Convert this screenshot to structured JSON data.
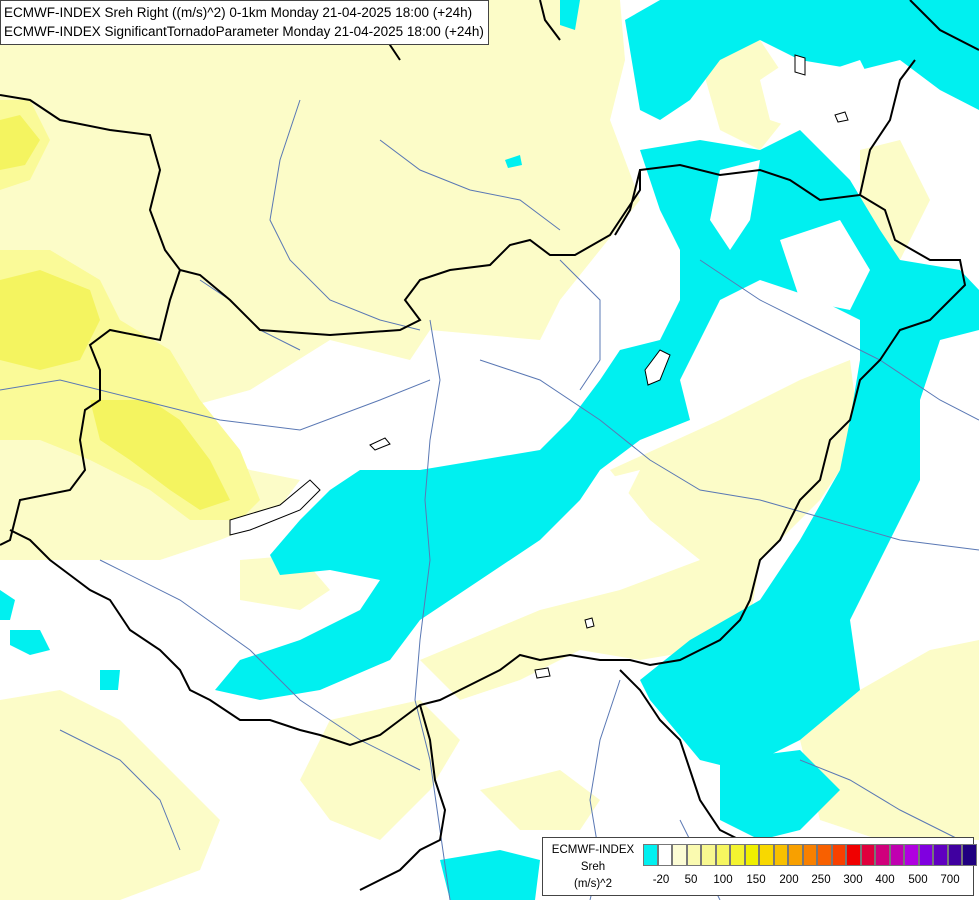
{
  "map": {
    "title_line_1": "ECMWF-INDEX Sreh Right ((m/s)^2) 0-1km Monday 21-04-2025 18:00 (+24h)",
    "title_line_2": "ECMWF-INDEX SignificantTornadoParameter Monday 21-04-2025 18:00 (+24h)",
    "colors": {
      "cyan": "#00f0f0",
      "pale_yellow": "#fcfcc0",
      "light_yellow": "#fafa90",
      "yellow": "#f4f45a",
      "border": "#000000",
      "river": "#5a78b4"
    }
  },
  "legend": {
    "title": "ECMWF-INDEX",
    "subtitle": "Sreh",
    "unit": "(m/s)^2",
    "colors": [
      "#00f0f0",
      "#ffffff",
      "#fcfcd4",
      "#fafab0",
      "#f8f890",
      "#f6f660",
      "#f4f430",
      "#f0f000",
      "#f8d800",
      "#f8c000",
      "#f8a000",
      "#f88000",
      "#f86000",
      "#f84000",
      "#f00000",
      "#e0003c",
      "#d0007c",
      "#c000b0",
      "#b000e0",
      "#8000e0",
      "#6000c0",
      "#4000a0",
      "#200080"
    ],
    "ticks": [
      "-20",
      "50",
      "100",
      "150",
      "200",
      "250",
      "300",
      "400",
      "500",
      "700"
    ]
  }
}
